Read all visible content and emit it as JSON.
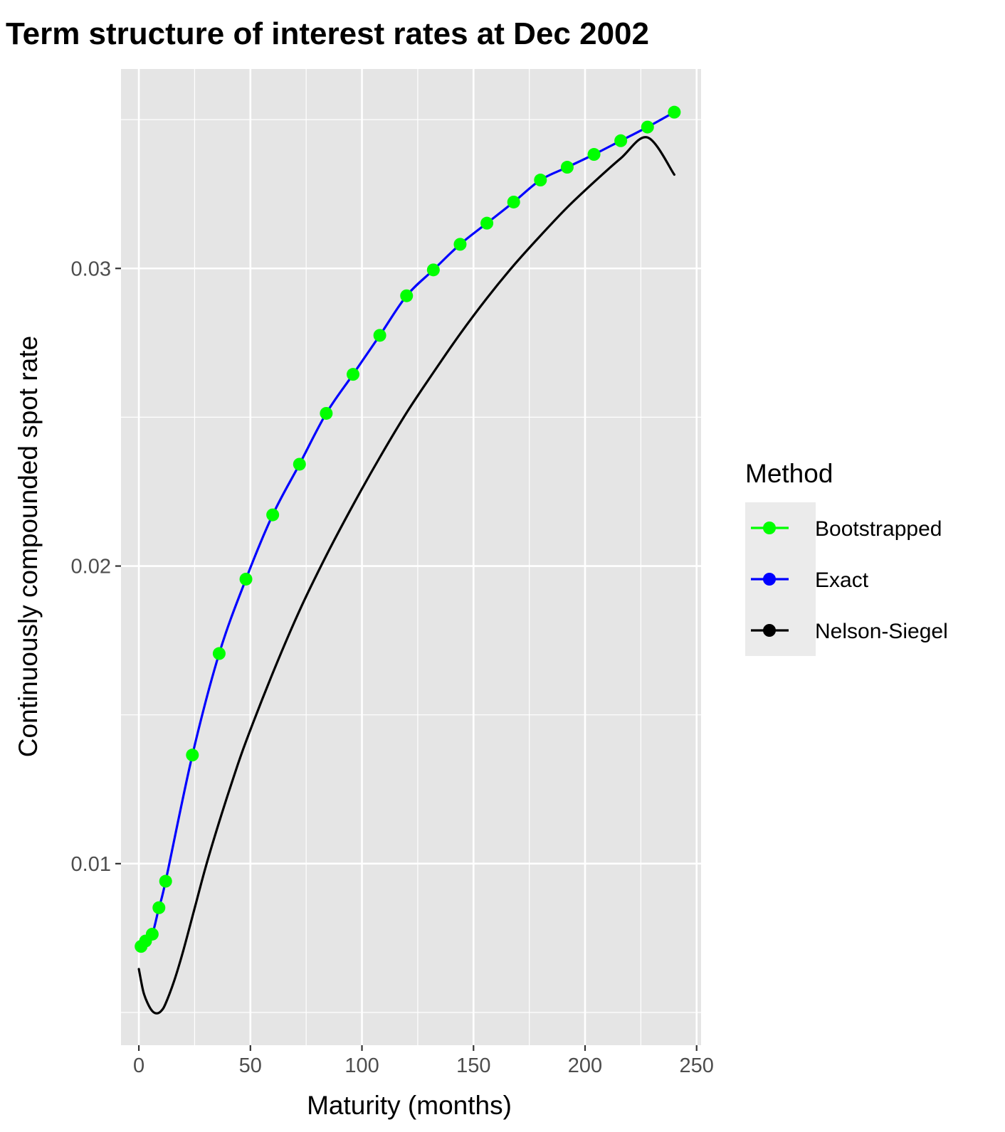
{
  "chart_data": {
    "type": "line",
    "title": "Term structure of interest rates at Dec 2002",
    "xlabel": "Maturity (months)",
    "ylabel": "Continuously compounded spot rate",
    "xlim": [
      -8,
      252
    ],
    "ylim": [
      0.0039,
      0.0367
    ],
    "x_ticks": [
      0,
      50,
      100,
      150,
      200,
      250
    ],
    "x_tick_labels": [
      "0",
      "50",
      "100",
      "150",
      "200",
      "250"
    ],
    "x_minor_ticks": [
      25,
      75,
      125,
      175,
      225
    ],
    "y_ticks": [
      0.01,
      0.02,
      0.03
    ],
    "y_tick_labels": [
      "0.01",
      "0.02",
      "0.03"
    ],
    "y_minor_ticks": [
      0.005,
      0.015,
      0.025,
      0.035
    ],
    "grid": true,
    "legend": {
      "title": "Method",
      "position": "right",
      "entries": [
        "Bootstrapped",
        "Exact",
        "Nelson-Siegel"
      ]
    },
    "series": [
      {
        "name": "Bootstrapped",
        "color": "#00ff00",
        "style": "points",
        "x": [
          1,
          3,
          6,
          9,
          12,
          24,
          36,
          48,
          60,
          72,
          84,
          96,
          108,
          120,
          132,
          144,
          156,
          168,
          180,
          192,
          204,
          216,
          228,
          240
        ],
        "y": [
          0.00722,
          0.0074,
          0.00763,
          0.00852,
          0.00941,
          0.01365,
          0.01706,
          0.01956,
          0.02172,
          0.02342,
          0.02513,
          0.02644,
          0.02775,
          0.02908,
          0.02995,
          0.03081,
          0.03152,
          0.03223,
          0.03297,
          0.0334,
          0.03383,
          0.03429,
          0.03475,
          0.03525
        ]
      },
      {
        "name": "Exact",
        "color": "#0000ff",
        "style": "line",
        "x": [
          0,
          1,
          3,
          6,
          9,
          12,
          24,
          36,
          48,
          60,
          72,
          84,
          96,
          108,
          120,
          132,
          144,
          156,
          168,
          180,
          192,
          204,
          216,
          228,
          240
        ],
        "y": [
          0.00718,
          0.00722,
          0.0074,
          0.00763,
          0.00852,
          0.00941,
          0.01365,
          0.01706,
          0.01956,
          0.02172,
          0.02342,
          0.02513,
          0.02644,
          0.02775,
          0.02908,
          0.02995,
          0.03081,
          0.03152,
          0.03223,
          0.03297,
          0.0334,
          0.03383,
          0.03429,
          0.03475,
          0.03525
        ]
      },
      {
        "name": "Nelson-Siegel",
        "color": "#000000",
        "style": "line",
        "x": [
          0,
          2,
          4,
          6,
          8,
          10,
          12,
          16,
          20,
          25,
          30,
          36,
          42,
          48,
          60,
          72,
          84,
          96,
          108,
          120,
          132,
          144,
          156,
          168,
          180,
          192,
          204,
          216,
          228,
          240
        ],
        "y": [
          0.00646,
          0.0057,
          0.0053,
          0.00505,
          0.00497,
          0.00505,
          0.0053,
          0.0061,
          0.0071,
          0.0085,
          0.0099,
          0.0114,
          0.0128,
          0.0141,
          0.0164,
          0.0185,
          0.02035,
          0.02205,
          0.02365,
          0.02515,
          0.0265,
          0.0278,
          0.029,
          0.0301,
          0.0311,
          0.03205,
          0.0329,
          0.0337,
          0.0344,
          0.03315
        ]
      }
    ]
  }
}
